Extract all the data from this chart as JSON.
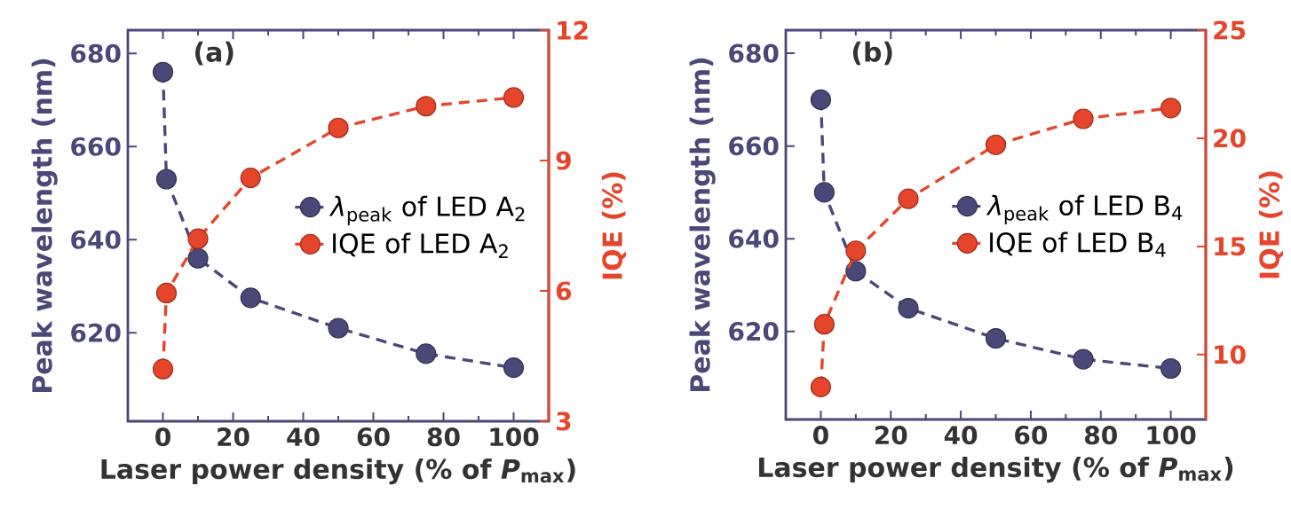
{
  "chart_data": [
    {
      "type": "line",
      "title": "(a)",
      "xlabel": "Laser power density (% of *P*$_{max}$)",
      "ylabel": "Peak wavelength (nm)",
      "y2label": "IQE (%)",
      "x": [
        0,
        1,
        10,
        25,
        50,
        75,
        100
      ],
      "series": [
        {
          "name": "*λ*$_{peak}$ of LED A$_{2}$",
          "color": "#4a4878",
          "values": [
            676,
            653,
            636,
            627.5,
            621,
            615.5,
            612.5
          ]
        },
        {
          "name": "IQE of LED A$_{2}$",
          "color": "#e5452a",
          "axis": "y2",
          "values": [
            4.2,
            5.95,
            7.2,
            8.6,
            9.75,
            10.25,
            10.45
          ]
        }
      ],
      "xlim": [
        -10,
        110
      ],
      "xticks": [
        0,
        20,
        40,
        60,
        80,
        100
      ],
      "ylim": [
        601,
        685
      ],
      "yticks": [
        620,
        640,
        660,
        680
      ],
      "y2lim": [
        3,
        12
      ],
      "y2ticks": [
        3,
        6,
        9,
        12
      ],
      "legend": "right",
      "marker": "circle",
      "line_style": "dashed"
    },
    {
      "type": "line",
      "title": "(b)",
      "xlabel": "Laser power density (% of *P*$_{max}$)",
      "ylabel": "Peak wavelength (nm)",
      "y2label": "IQE (%)",
      "x": [
        0,
        1,
        10,
        25,
        50,
        75,
        100
      ],
      "series": [
        {
          "name": "*λ*$_{peak}$ of LED B$_{4}$",
          "color": "#4a4878",
          "values": [
            670,
            650,
            633,
            625,
            618.5,
            614,
            612
          ]
        },
        {
          "name": "IQE of LED B$_{4}$",
          "color": "#e5452a",
          "axis": "y2",
          "values": [
            8.5,
            11.4,
            14.8,
            17.2,
            19.7,
            20.9,
            21.4
          ]
        }
      ],
      "xlim": [
        -10,
        110
      ],
      "xticks": [
        0,
        20,
        40,
        60,
        80,
        100
      ],
      "ylim": [
        601,
        685
      ],
      "yticks": [
        620,
        640,
        660,
        680
      ],
      "y2lim": [
        7,
        25
      ],
      "y2ticks": [
        10,
        15,
        20,
        25
      ],
      "legend": "right",
      "marker": "circle",
      "line_style": "dashed"
    }
  ]
}
